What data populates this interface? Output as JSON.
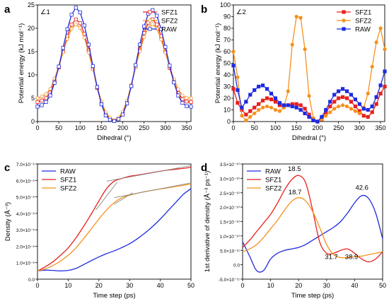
{
  "colors": {
    "red": "#e8201c",
    "orange": "#f5911d",
    "blue": "#1d2be0",
    "gray": "#888888"
  },
  "chart_data": [
    {
      "panel": "a",
      "type": "line",
      "annotation": "∠1",
      "xlabel": "Dihedral (°)",
      "ylabel": "Potential energy (kJ mol⁻¹)",
      "xlim": [
        0,
        360
      ],
      "ylim": [
        0,
        25
      ],
      "xticks": [
        "0",
        "50",
        "100",
        "150",
        "200",
        "250",
        "300",
        "350"
      ],
      "yticks": [
        "0",
        "5",
        "10",
        "15",
        "20",
        "25"
      ],
      "legend_position": "top-right",
      "grid": false,
      "x": [
        0,
        10,
        20,
        30,
        40,
        50,
        60,
        70,
        80,
        90,
        100,
        110,
        120,
        130,
        140,
        150,
        160,
        170,
        180,
        190,
        200,
        210,
        220,
        230,
        240,
        250,
        260,
        270,
        280,
        290,
        300,
        310,
        320,
        330,
        340,
        350,
        360
      ],
      "series": [
        {
          "name": "SFZ1",
          "color": "#e8201c",
          "marker": "square-open",
          "values": [
            4.2,
            4.5,
            5.0,
            6.2,
            8.6,
            11.6,
            15.0,
            18.3,
            20.8,
            21.9,
            21.1,
            18.8,
            15.3,
            11.3,
            7.2,
            3.9,
            1.6,
            0.6,
            0.2,
            0.6,
            1.7,
            4.1,
            7.6,
            11.7,
            15.6,
            19.0,
            21.2,
            21.9,
            20.8,
            18.3,
            15.0,
            11.5,
            8.5,
            6.1,
            4.8,
            4.3,
            4.2
          ]
        },
        {
          "name": "SFZ2",
          "color": "#f5911d",
          "marker": "circle-open",
          "values": [
            5.0,
            5.4,
            5.9,
            7.0,
            9.2,
            11.8,
            14.9,
            17.7,
            19.9,
            20.8,
            20.1,
            18.0,
            14.8,
            11.2,
            7.5,
            4.3,
            2.0,
            0.8,
            0.3,
            0.8,
            2.1,
            4.5,
            7.9,
            11.6,
            15.1,
            18.1,
            20.2,
            20.9,
            19.9,
            17.6,
            14.8,
            11.7,
            9.1,
            6.9,
            5.6,
            5.1,
            5.0
          ]
        },
        {
          "name": "RAW",
          "color": "#1d2be0",
          "marker": "square-open",
          "values": [
            3.2,
            3.5,
            4.2,
            5.6,
            8.3,
            11.8,
            15.8,
            19.8,
            22.9,
            24.4,
            23.4,
            20.6,
            16.5,
            11.9,
            7.4,
            3.7,
            1.3,
            0.4,
            0.1,
            0.5,
            1.5,
            3.9,
            7.6,
            12.1,
            16.5,
            20.4,
            23.1,
            23.9,
            22.7,
            19.8,
            16.0,
            12.0,
            8.4,
            5.6,
            4.0,
            3.3,
            3.2
          ]
        }
      ]
    },
    {
      "panel": "b",
      "type": "line",
      "annotation": "∠2",
      "xlabel": "Dihedral (°)",
      "ylabel": "Potential energy (kJ mol⁻¹)",
      "xlim": [
        0,
        360
      ],
      "ylim": [
        0,
        100
      ],
      "xticks": [
        "0",
        "50",
        "100",
        "150",
        "200",
        "250",
        "300",
        "350"
      ],
      "yticks": [
        "0",
        "10",
        "20",
        "30",
        "40",
        "50",
        "60",
        "70",
        "80",
        "90",
        "100"
      ],
      "legend_position": "top-right",
      "grid": false,
      "x": [
        0,
        10,
        20,
        30,
        40,
        50,
        60,
        70,
        80,
        90,
        100,
        110,
        120,
        130,
        140,
        150,
        160,
        170,
        180,
        190,
        200,
        210,
        220,
        230,
        240,
        250,
        260,
        270,
        280,
        290,
        300,
        310,
        320,
        330,
        340,
        350,
        360
      ],
      "series": [
        {
          "name": "SFZ1",
          "color": "#e8201c",
          "marker": "square-filled",
          "values": [
            28,
            16,
            10,
            6,
            9,
            12,
            15,
            18,
            20,
            19,
            17,
            14,
            13,
            14,
            15,
            15,
            14,
            11,
            6,
            2,
            0,
            2,
            8,
            13,
            17,
            20,
            21,
            20,
            17,
            13,
            9,
            5,
            4,
            8,
            15,
            24,
            30
          ]
        },
        {
          "name": "SFZ2",
          "color": "#f5911d",
          "marker": "circle-filled",
          "values": [
            60,
            38,
            5,
            1,
            4,
            7,
            10,
            12,
            13,
            12,
            10,
            9,
            12,
            26,
            66,
            90,
            89,
            62,
            22,
            3,
            0,
            2,
            5,
            8,
            11,
            13,
            14,
            13,
            11,
            9,
            7,
            12,
            24,
            47,
            68,
            80,
            62
          ]
        },
        {
          "name": "RAW",
          "color": "#1d2be0",
          "marker": "square-filled",
          "values": [
            48,
            27,
            12,
            17,
            23,
            27,
            30,
            31,
            28,
            24,
            20,
            16,
            14,
            14,
            13,
            12,
            10,
            7,
            4,
            1,
            0,
            4,
            10,
            17,
            23,
            26,
            28,
            26,
            23,
            19,
            15,
            11,
            10,
            13,
            21,
            31,
            43
          ]
        }
      ]
    },
    {
      "panel": "c",
      "type": "line",
      "xlabel": "Time step (ps)",
      "ylabel": "Density (Å⁻³)",
      "xlim": [
        0,
        50
      ],
      "ylim": [
        0,
        7e-06
      ],
      "xticks": [
        "0",
        "10",
        "20",
        "30",
        "40",
        "50"
      ],
      "yticks": [
        "0.0",
        "1.0×10⁻⁶",
        "2.0×10⁻⁶",
        "3.0×10⁻⁶",
        "4.0×10⁻⁶",
        "5.0×10⁻⁶",
        "6.0×10⁻⁶",
        "7.0×10⁻⁶"
      ],
      "legend_position": "top-left",
      "grid": false,
      "x": [
        0,
        2.5,
        5,
        7.5,
        10,
        12.5,
        15,
        17.5,
        20,
        22.5,
        25,
        27.5,
        30,
        32.5,
        35,
        37.5,
        40,
        42.5,
        45,
        47.5,
        50
      ],
      "series": [
        {
          "name": "RAW",
          "color": "#1d2be0",
          "values": [
            5e-07,
            5.5e-07,
            5.3e-07,
            5e-07,
            5.3e-07,
            6.5e-07,
            8.8e-07,
            1.12e-06,
            1.35e-06,
            1.55e-06,
            1.72e-06,
            1.92e-06,
            2.15e-06,
            2.45e-06,
            2.8e-06,
            3.2e-06,
            3.65e-06,
            4.15e-06,
            4.65e-06,
            5.15e-06,
            5.5e-06
          ]
        },
        {
          "name": "SFZ1",
          "color": "#e8201c",
          "values": [
            5e-07,
            7.5e-07,
            1.05e-06,
            1.45e-06,
            1.9e-06,
            2.5e-06,
            3.2e-06,
            3.95e-06,
            4.75e-06,
            5.5e-06,
            5.95e-06,
            6.12e-06,
            6.25e-06,
            6.32e-06,
            6.4e-06,
            6.48e-06,
            6.56e-06,
            6.63e-06,
            6.68e-06,
            6.73e-06,
            6.8e-06
          ]
        },
        {
          "name": "SFZ2",
          "color": "#f5911d",
          "values": [
            5e-07,
            6.2e-07,
            8.2e-07,
            1.1e-06,
            1.45e-06,
            1.9e-06,
            2.45e-06,
            3.05e-06,
            3.65e-06,
            4.2e-06,
            4.65e-06,
            4.95e-06,
            5.1e-06,
            5.22e-06,
            5.32e-06,
            5.4e-06,
            5.48e-06,
            5.55e-06,
            5.63e-06,
            5.7e-06,
            5.78e-06
          ]
        }
      ]
    },
    {
      "panel": "d",
      "type": "line",
      "xlabel": "Time step (ps)",
      "ylabel": "1st derivative of density (Å⁻³ ps⁻¹)",
      "xlim": [
        0,
        50
      ],
      "ylim": [
        -5e-11,
        3.5e-10
      ],
      "xticks": [
        "0",
        "10",
        "20",
        "30",
        "40",
        "50"
      ],
      "yticks": [
        "-5.0×10⁻¹¹",
        "0.0",
        "5.0×10⁻¹¹",
        "1.0×10⁻¹⁰",
        "1.5×10⁻¹⁰",
        "2.0×10⁻¹⁰",
        "2.5×10⁻¹⁰",
        "3.0×10⁻¹⁰",
        "3.5×10⁻¹⁰"
      ],
      "legend_position": "top-left",
      "grid": false,
      "x": [
        0,
        2.5,
        5,
        7.5,
        10,
        12.5,
        15,
        17.5,
        20,
        22.5,
        25,
        27.5,
        30,
        32.5,
        35,
        37.5,
        40,
        42.5,
        45,
        47.5,
        50
      ],
      "series": [
        {
          "name": "RAW",
          "color": "#1d2be0",
          "values": [
            8e-11,
            3e-11,
            -2e-11,
            -2e-11,
            2e-11,
            4e-11,
            5e-11,
            5.5e-11,
            6e-11,
            7e-11,
            8.5e-11,
            1e-10,
            1.15e-10,
            1.3e-10,
            1.5e-10,
            1.8e-10,
            2.15e-10,
            2.4e-10,
            2.3e-10,
            1.8e-10,
            9e-11
          ]
        },
        {
          "name": "SFZ1",
          "color": "#e8201c",
          "values": [
            6e-11,
            8.5e-11,
            1.15e-10,
            1.45e-10,
            1.75e-10,
            2.15e-10,
            2.6e-10,
            2.95e-10,
            3.1e-10,
            2.85e-10,
            1.9e-10,
            8e-11,
            4e-11,
            4e-11,
            5e-11,
            5.5e-11,
            4e-11,
            2e-11,
            1e-11,
            2e-11,
            4.5e-11
          ]
        },
        {
          "name": "SFZ2",
          "color": "#f5911d",
          "values": [
            4.5e-11,
            5.5e-11,
            7e-11,
            9.5e-11,
            1.25e-10,
            1.55e-10,
            1.9e-10,
            2.2e-10,
            2.33e-10,
            2.22e-10,
            1.85e-10,
            1.3e-10,
            7e-11,
            3.5e-11,
            2.5e-11,
            2.5e-11,
            2.8e-11,
            3e-11,
            3.5e-11,
            4e-11,
            4.5e-11
          ]
        }
      ],
      "annotations": [
        "18.5",
        "18.7",
        "31.7",
        "38.9",
        "42.6"
      ]
    }
  ]
}
